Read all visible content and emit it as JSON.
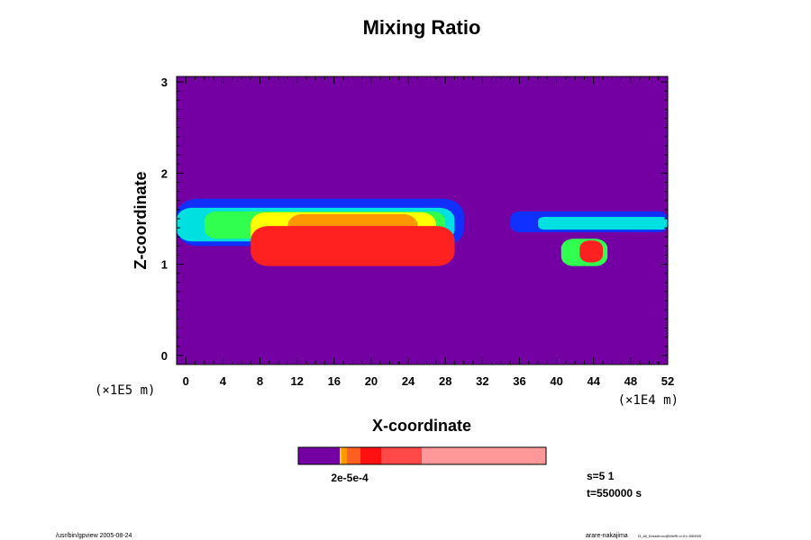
{
  "chart_data": {
    "type": "heatmap",
    "title": "Mixing Ratio",
    "xlabel": "X-coordinate",
    "ylabel": "Z-coordinate",
    "x_scale_label": "(×1E4 m)",
    "y_scale_label": "(×1E5 m)",
    "xlim": [
      -1,
      52
    ],
    "ylim": [
      -0.1,
      3.06
    ],
    "x_ticks": [
      "0",
      "4",
      "8",
      "12",
      "16",
      "20",
      "24",
      "28",
      "32",
      "36",
      "40",
      "44",
      "48",
      "52"
    ],
    "y_ticks": [
      "0",
      "1",
      "2",
      "3"
    ],
    "background_color": "#7400a4",
    "colorbar": {
      "colors": [
        "#7400a4",
        "#ffd000",
        "#ff9800",
        "#ff6020",
        "#ff1010",
        "#ff4848",
        "#ff9898"
      ],
      "label": "2e-5e-4",
      "label_note": "overlapping tick labels (e.g. 1e-5, 2e-5, 5e-5, 1e-4, 2e-4, 5e-4)"
    },
    "regions": [
      {
        "level": "blue",
        "color": "#1030ff",
        "x0": -1,
        "x1": 30,
        "z0": 1.2,
        "z1": 1.72
      },
      {
        "level": "cyan",
        "color": "#00e0e0",
        "x0": -1,
        "x1": 29,
        "z0": 1.25,
        "z1": 1.62
      },
      {
        "level": "green",
        "color": "#30ff50",
        "x0": 2,
        "x1": 28,
        "z0": 1.28,
        "z1": 1.58
      },
      {
        "level": "yellow",
        "color": "#ffff00",
        "x0": 7,
        "x1": 27,
        "z0": 1.2,
        "z1": 1.57
      },
      {
        "level": "orange",
        "color": "#ff9800",
        "x0": 11,
        "x1": 25,
        "z0": 1.2,
        "z1": 1.55
      },
      {
        "level": "red",
        "color": "#ff2020",
        "x0": 7,
        "x1": 29,
        "z0": 0.98,
        "z1": 1.42
      },
      {
        "level": "blue",
        "color": "#1030ff",
        "x0": 35,
        "x1": 52,
        "z0": 1.35,
        "z1": 1.58
      },
      {
        "level": "cyan",
        "color": "#00e0e0",
        "x0": 38,
        "x1": 52,
        "z0": 1.38,
        "z1": 1.52
      },
      {
        "level": "green",
        "color": "#30ff50",
        "x0": 40.5,
        "x1": 45.5,
        "z0": 0.98,
        "z1": 1.28
      },
      {
        "level": "red",
        "color": "#ff2020",
        "x0": 42.5,
        "x1": 45,
        "z0": 1.02,
        "z1": 1.26
      }
    ],
    "grid": false,
    "legend_position": "bottom"
  },
  "annotations": {
    "s_value": "s=5 1",
    "t_value": "t=550000 s"
  },
  "footer": {
    "left": "/usr/bin/gpview 2005-08-24",
    "right_main": "arare-nakajima",
    "right_small": "t3_all_Kessler.nc@MixRt,x=0,t=550000"
  }
}
